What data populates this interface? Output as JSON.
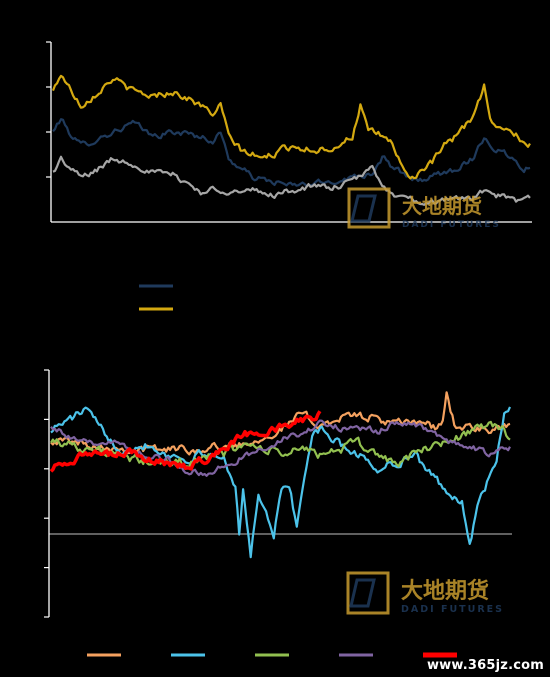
{
  "watermark": {
    "brand_cn": "大地期货",
    "brand_en": "DADI FUTURES"
  },
  "site_watermark": "www.365jz.com",
  "colors": {
    "background": "#000000",
    "axis": "#ffffff",
    "zero_line": "#bfbfbf",
    "navy": "#1f3a5c",
    "gold": "#d4a911",
    "gray": "#a6a6a6",
    "orange": "#f4a15f",
    "sky": "#4cc3ea",
    "green": "#92c050",
    "purple": "#8064a2",
    "red": "#ff0000",
    "logo_gold": "#c79a2e",
    "logo_navy": "#1f3a5c"
  },
  "chart_data": [
    {
      "type": "line",
      "title": "",
      "xlabel": "",
      "ylabel": "",
      "n_points": 240,
      "ylim": [
        0,
        4
      ],
      "yticks": [
        1,
        2,
        3,
        4
      ],
      "grid": false,
      "legend": "below, line swatches without text",
      "series": [
        {
          "name": "",
          "color_key": "navy",
          "legend_swatch": true,
          "anchors": [
            [
              0,
              2.0
            ],
            [
              4,
              2.3
            ],
            [
              8,
              2.0
            ],
            [
              14,
              1.7
            ],
            [
              20,
              1.8
            ],
            [
              30,
              2.0
            ],
            [
              40,
              2.2
            ],
            [
              50,
              1.9
            ],
            [
              60,
              2.0
            ],
            [
              70,
              1.95
            ],
            [
              80,
              1.8
            ],
            [
              84,
              2.0
            ],
            [
              88,
              1.4
            ],
            [
              94,
              1.2
            ],
            [
              100,
              1.0
            ],
            [
              104,
              0.95
            ],
            [
              110,
              0.9
            ],
            [
              120,
              0.8
            ],
            [
              130,
              0.85
            ],
            [
              140,
              0.9
            ],
            [
              150,
              1.0
            ],
            [
              160,
              1.1
            ],
            [
              166,
              1.5
            ],
            [
              170,
              1.2
            ],
            [
              176,
              1.05
            ],
            [
              180,
              0.9
            ],
            [
              190,
              1.0
            ],
            [
              196,
              1.1
            ],
            [
              200,
              1.15
            ],
            [
              210,
              1.4
            ],
            [
              216,
              1.9
            ],
            [
              220,
              1.65
            ],
            [
              226,
              1.55
            ],
            [
              232,
              1.35
            ],
            [
              236,
              1.2
            ],
            [
              240,
              1.25
            ]
          ],
          "noise": 0.07
        },
        {
          "name": "",
          "color_key": "gold",
          "legend_swatch": true,
          "anchors": [
            [
              0,
              2.9
            ],
            [
              4,
              3.3
            ],
            [
              8,
              3.0
            ],
            [
              14,
              2.6
            ],
            [
              20,
              2.8
            ],
            [
              30,
              3.2
            ],
            [
              40,
              2.9
            ],
            [
              50,
              2.8
            ],
            [
              60,
              2.9
            ],
            [
              70,
              2.7
            ],
            [
              80,
              2.4
            ],
            [
              84,
              2.6
            ],
            [
              88,
              1.9
            ],
            [
              94,
              1.6
            ],
            [
              100,
              1.5
            ],
            [
              104,
              1.4
            ],
            [
              110,
              1.5
            ],
            [
              120,
              1.7
            ],
            [
              130,
              1.6
            ],
            [
              140,
              1.65
            ],
            [
              150,
              1.9
            ],
            [
              154,
              2.6
            ],
            [
              158,
              2.0
            ],
            [
              166,
              1.9
            ],
            [
              170,
              1.75
            ],
            [
              176,
              1.1
            ],
            [
              180,
              1.0
            ],
            [
              190,
              1.3
            ],
            [
              196,
              1.7
            ],
            [
              200,
              1.8
            ],
            [
              210,
              2.3
            ],
            [
              216,
              3.0
            ],
            [
              220,
              2.2
            ],
            [
              226,
              2.1
            ],
            [
              232,
              1.95
            ],
            [
              236,
              1.7
            ],
            [
              240,
              1.75
            ]
          ],
          "noise": 0.08
        },
        {
          "name": "",
          "color_key": "gray",
          "legend_swatch": false,
          "anchors": [
            [
              0,
              1.1
            ],
            [
              4,
              1.4
            ],
            [
              8,
              1.2
            ],
            [
              14,
              1.0
            ],
            [
              20,
              1.1
            ],
            [
              30,
              1.4
            ],
            [
              40,
              1.3
            ],
            [
              50,
              1.1
            ],
            [
              60,
              1.05
            ],
            [
              70,
              0.8
            ],
            [
              76,
              0.6
            ],
            [
              80,
              0.75
            ],
            [
              88,
              0.7
            ],
            [
              94,
              0.65
            ],
            [
              100,
              0.7
            ],
            [
              104,
              0.65
            ],
            [
              110,
              0.6
            ],
            [
              120,
              0.7
            ],
            [
              130,
              0.8
            ],
            [
              140,
              0.75
            ],
            [
              150,
              0.9
            ],
            [
              160,
              1.2
            ],
            [
              166,
              0.8
            ],
            [
              170,
              0.6
            ],
            [
              176,
              0.5
            ],
            [
              180,
              0.55
            ],
            [
              186,
              0.3
            ],
            [
              190,
              0.4
            ],
            [
              196,
              0.5
            ],
            [
              200,
              0.55
            ],
            [
              210,
              0.5
            ],
            [
              216,
              0.7
            ],
            [
              220,
              0.6
            ],
            [
              226,
              0.55
            ],
            [
              232,
              0.45
            ],
            [
              236,
              0.5
            ],
            [
              240,
              0.55
            ]
          ],
          "noise": 0.07
        }
      ]
    },
    {
      "type": "line",
      "title": "",
      "xlabel": "",
      "ylabel": "",
      "n_points": 240,
      "ylim": [
        -2,
        3
      ],
      "yticks": [
        -2,
        -1,
        0,
        1,
        2,
        3
      ],
      "zero_line": true,
      "grid": false,
      "legend": "bottom, line swatches without text",
      "series": [
        {
          "name": "",
          "color_key": "orange",
          "anchors": [
            [
              0,
              1.6
            ],
            [
              20,
              1.5
            ],
            [
              40,
              1.4
            ],
            [
              60,
              1.4
            ],
            [
              80,
              1.4
            ],
            [
              100,
              1.5
            ],
            [
              120,
              1.8
            ],
            [
              130,
              2.1
            ],
            [
              140,
              1.9
            ],
            [
              160,
              2.1
            ],
            [
              180,
              1.9
            ],
            [
              196,
              1.95
            ],
            [
              200,
              1.8
            ],
            [
              204,
              2.0
            ],
            [
              206,
              2.5
            ],
            [
              210,
              1.9
            ],
            [
              220,
              1.8
            ],
            [
              230,
              1.75
            ],
            [
              240,
              1.9
            ]
          ],
          "noise": 0.09
        },
        {
          "name": "",
          "color_key": "sky",
          "anchors": [
            [
              0,
              1.8
            ],
            [
              10,
              2.0
            ],
            [
              18,
              2.2
            ],
            [
              26,
              1.8
            ],
            [
              36,
              1.4
            ],
            [
              50,
              1.5
            ],
            [
              60,
              1.3
            ],
            [
              70,
              1.2
            ],
            [
              80,
              1.3
            ],
            [
              90,
              1.2
            ],
            [
              96,
              0.7
            ],
            [
              98,
              -0.3
            ],
            [
              100,
              0.6
            ],
            [
              104,
              -0.8
            ],
            [
              108,
              0.5
            ],
            [
              112,
              0.2
            ],
            [
              116,
              -0.4
            ],
            [
              120,
              0.6
            ],
            [
              124,
              0.7
            ],
            [
              128,
              -0.2
            ],
            [
              132,
              0.9
            ],
            [
              136,
              1.6
            ],
            [
              140,
              1.8
            ],
            [
              150,
              1.5
            ],
            [
              160,
              1.3
            ],
            [
              170,
              1.0
            ],
            [
              178,
              1.1
            ],
            [
              184,
              1.2
            ],
            [
              190,
              1.3
            ],
            [
              196,
              0.9
            ],
            [
              200,
              0.8
            ],
            [
              208,
              0.5
            ],
            [
              214,
              0.3
            ],
            [
              218,
              -0.5
            ],
            [
              222,
              0.2
            ],
            [
              226,
              0.6
            ],
            [
              232,
              1.2
            ],
            [
              236,
              2.1
            ],
            [
              240,
              2.2
            ]
          ],
          "noise": 0.09
        },
        {
          "name": "",
          "color_key": "green",
          "anchors": [
            [
              0,
              1.6
            ],
            [
              20,
              1.4
            ],
            [
              40,
              1.2
            ],
            [
              60,
              1.1
            ],
            [
              80,
              1.2
            ],
            [
              90,
              1.3
            ],
            [
              100,
              1.5
            ],
            [
              110,
              1.4
            ],
            [
              120,
              1.3
            ],
            [
              130,
              1.4
            ],
            [
              140,
              1.3
            ],
            [
              150,
              1.4
            ],
            [
              160,
              1.5
            ],
            [
              170,
              1.3
            ],
            [
              180,
              1.1
            ],
            [
              190,
              1.3
            ],
            [
              200,
              1.5
            ],
            [
              210,
              1.6
            ],
            [
              220,
              1.8
            ],
            [
              230,
              1.9
            ],
            [
              236,
              1.75
            ],
            [
              240,
              1.6
            ]
          ],
          "noise": 0.1
        },
        {
          "name": "",
          "color_key": "purple",
          "anchors": [
            [
              0,
              1.9
            ],
            [
              10,
              1.6
            ],
            [
              20,
              1.5
            ],
            [
              30,
              1.6
            ],
            [
              40,
              1.4
            ],
            [
              50,
              1.3
            ],
            [
              60,
              1.2
            ],
            [
              70,
              1.0
            ],
            [
              80,
              0.85
            ],
            [
              90,
              1.05
            ],
            [
              100,
              1.25
            ],
            [
              110,
              1.4
            ],
            [
              120,
              1.6
            ],
            [
              130,
              1.7
            ],
            [
              140,
              1.9
            ],
            [
              150,
              1.85
            ],
            [
              160,
              1.8
            ],
            [
              170,
              1.75
            ],
            [
              180,
              1.95
            ],
            [
              190,
              1.9
            ],
            [
              200,
              1.7
            ],
            [
              210,
              1.5
            ],
            [
              220,
              1.4
            ],
            [
              230,
              1.3
            ],
            [
              240,
              1.45
            ]
          ],
          "noise": 0.07
        },
        {
          "name": "",
          "color_key": "red",
          "stroke_width": 3.5,
          "end_index": 140,
          "anchors": [
            [
              0,
              1.0
            ],
            [
              10,
              1.2
            ],
            [
              20,
              1.3
            ],
            [
              30,
              1.25
            ],
            [
              40,
              1.35
            ],
            [
              50,
              1.2
            ],
            [
              60,
              1.1
            ],
            [
              70,
              1.05
            ],
            [
              80,
              1.2
            ],
            [
              90,
              1.4
            ],
            [
              100,
              1.7
            ],
            [
              110,
              1.75
            ],
            [
              120,
              1.85
            ],
            [
              130,
              2.0
            ],
            [
              140,
              2.1
            ]
          ],
          "noise": 0.08
        }
      ]
    }
  ]
}
